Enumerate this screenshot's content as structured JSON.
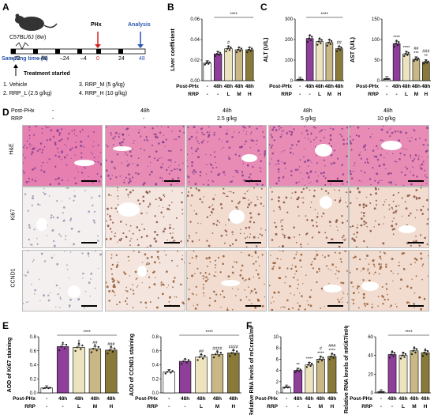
{
  "panel_labels": {
    "A": "A",
    "B": "B",
    "C": "C",
    "D": "D",
    "E": "E",
    "F": "F"
  },
  "panel_a": {
    "mouse": "C57BL/6J (8w)",
    "sampling_label": "Sampling time (h)",
    "ticks": [
      "–72",
      "–48",
      "–24",
      "–4",
      "0",
      "24",
      "48"
    ],
    "phx": "PHx",
    "analysis": "Analysis",
    "treatment": "Treatment started",
    "groups": [
      "1. Vehicle",
      "2. RRP_L (2.5 g/kg)",
      "3. RRP_M (5 g/kg)",
      "4. RRP_H (10 g/kg)"
    ]
  },
  "row_labels": {
    "phx": "Post-PHx",
    "rrp": "RRP"
  },
  "conditions_phx": [
    "-",
    "48h",
    "48h",
    "48h",
    "48h"
  ],
  "conditions_rrp": [
    "-",
    "-",
    "L",
    "M",
    "H"
  ],
  "panel_d": {
    "cols": [
      {
        "phx": "-",
        "rrp": "-"
      },
      {
        "phx": "48h",
        "rrp": "-"
      },
      {
        "phx": "48h",
        "rrp": "2.5 g/kg"
      },
      {
        "phx": "48h",
        "rrp": "5 g/kg"
      },
      {
        "phx": "48h",
        "rrp": "10 g/kg"
      }
    ],
    "rows": [
      "H&E",
      "Ki67",
      "CCND1"
    ]
  },
  "colors": {
    "vehicle": "#ffffff",
    "phx": "#8e3f9a",
    "low": "#ede3bf",
    "mid": "#c9b886",
    "high": "#8a7a3a",
    "he": "#e889b4",
    "ihc": "#f4e6df"
  },
  "chart_data": [
    {
      "id": "B",
      "type": "bar",
      "ylabel": "Liver coefficient",
      "yticks": [
        "0.00",
        "0.02",
        "0.04",
        "0.06"
      ],
      "ylim": [
        0,
        0.06
      ],
      "values": [
        0.017,
        0.026,
        0.031,
        0.03,
        0.03
      ],
      "sig_bracket": "****",
      "sig_marks": [
        "",
        "",
        "#",
        "",
        ""
      ]
    },
    {
      "id": "C1",
      "type": "bar",
      "ylabel": "ALT (U/L)",
      "yticks": [
        "0",
        "100",
        "200",
        "300"
      ],
      "ylim": [
        0,
        300
      ],
      "values": [
        5,
        205,
        190,
        185,
        155
      ],
      "sig_bracket": "****",
      "sig_marks": [
        "",
        "",
        "",
        "",
        "##"
      ]
    },
    {
      "id": "C2",
      "type": "bar",
      "ylabel": "AST (U/L)",
      "yticks": [
        "0",
        "50",
        "100",
        "150"
      ],
      "ylim": [
        0,
        150
      ],
      "values": [
        4,
        90,
        65,
        52,
        45
      ],
      "sig_bracket": "",
      "sig_marks": [
        "",
        "****",
        "****",
        "##\n***",
        "###\n**"
      ]
    },
    {
      "id": "E1",
      "type": "bar",
      "ylabel": "AOD of Ki67 staining",
      "yticks": [
        "0.0",
        "0.2",
        "0.4",
        "0.6",
        "0.8"
      ],
      "ylim": [
        0,
        0.8
      ],
      "values": [
        0.07,
        0.66,
        0.65,
        0.63,
        0.61
      ],
      "sig_bracket": "****",
      "sig_marks": [
        "",
        "",
        "#",
        "##",
        "###"
      ]
    },
    {
      "id": "E2",
      "type": "bar",
      "ylabel": "AOD of CCND1 staining",
      "yticks": [
        "0.0",
        "0.2",
        "0.4",
        "0.6",
        "0.8"
      ],
      "ylim": [
        0,
        0.8
      ],
      "values": [
        0.3,
        0.45,
        0.51,
        0.55,
        0.57
      ],
      "sig_bracket": "****",
      "sig_marks": [
        "",
        "",
        "##",
        "####",
        "####"
      ]
    },
    {
      "id": "F1",
      "type": "bar",
      "ylabel": "Relative RNA levels of mCcnd1/mHprt1",
      "yticks": [
        "0",
        "2",
        "4",
        "6",
        "8",
        "10"
      ],
      "ylim": [
        0,
        10
      ],
      "values": [
        1,
        4,
        5,
        6,
        6.5
      ],
      "sig_bracket": "",
      "sig_marks": [
        "",
        "**",
        "****",
        "#\n****",
        "###\n****"
      ]
    },
    {
      "id": "F2",
      "type": "bar",
      "ylabel": "Relative RNA levels of mKi67/mHprt1",
      "yticks": [
        "0",
        "20",
        "40",
        "60"
      ],
      "ylim": [
        0,
        60
      ],
      "values": [
        1,
        41,
        40,
        45,
        43
      ],
      "sig_bracket": "****",
      "sig_marks": [
        "",
        "",
        "",
        "",
        ""
      ]
    }
  ]
}
